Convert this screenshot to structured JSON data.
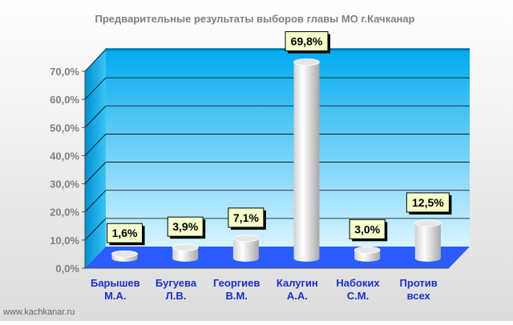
{
  "page": {
    "watermark": "www.kachkanar.ru"
  },
  "colors": {
    "wall_top": "#00aaee",
    "wall_bottom": "#d8f4ff",
    "floor": "#2b5cff",
    "axis_text": "#808080",
    "category_text": "#1c2fcc",
    "label_fill": "#f4ffcc",
    "bar_light": "#ffffff",
    "bar_dark": "#b8b8b8"
  },
  "chart_data": {
    "type": "bar",
    "title": "Предварительные результаты выборов главы МО г.Качканар",
    "categories": [
      [
        "Барышев",
        "М.А."
      ],
      [
        "Бугуева",
        "Л.В."
      ],
      [
        "Георгиев",
        "В.М."
      ],
      [
        "Калугин",
        "А.А."
      ],
      [
        "Набоких",
        "С.М."
      ],
      [
        "Против",
        "всех"
      ]
    ],
    "values": [
      1.6,
      3.9,
      7.1,
      69.8,
      3.0,
      12.5
    ],
    "value_labels": [
      "1,6%",
      "3,9%",
      "7,1%",
      "69,8%",
      "3,0%",
      "12,5%"
    ],
    "yticks": [
      "0,0%",
      "10,0%",
      "20,0%",
      "30,0%",
      "40,0%",
      "50,0%",
      "60,0%",
      "70,0%"
    ],
    "ylim": [
      0,
      70
    ],
    "grid": true,
    "legend": "none",
    "style": "3d-cylinder"
  }
}
